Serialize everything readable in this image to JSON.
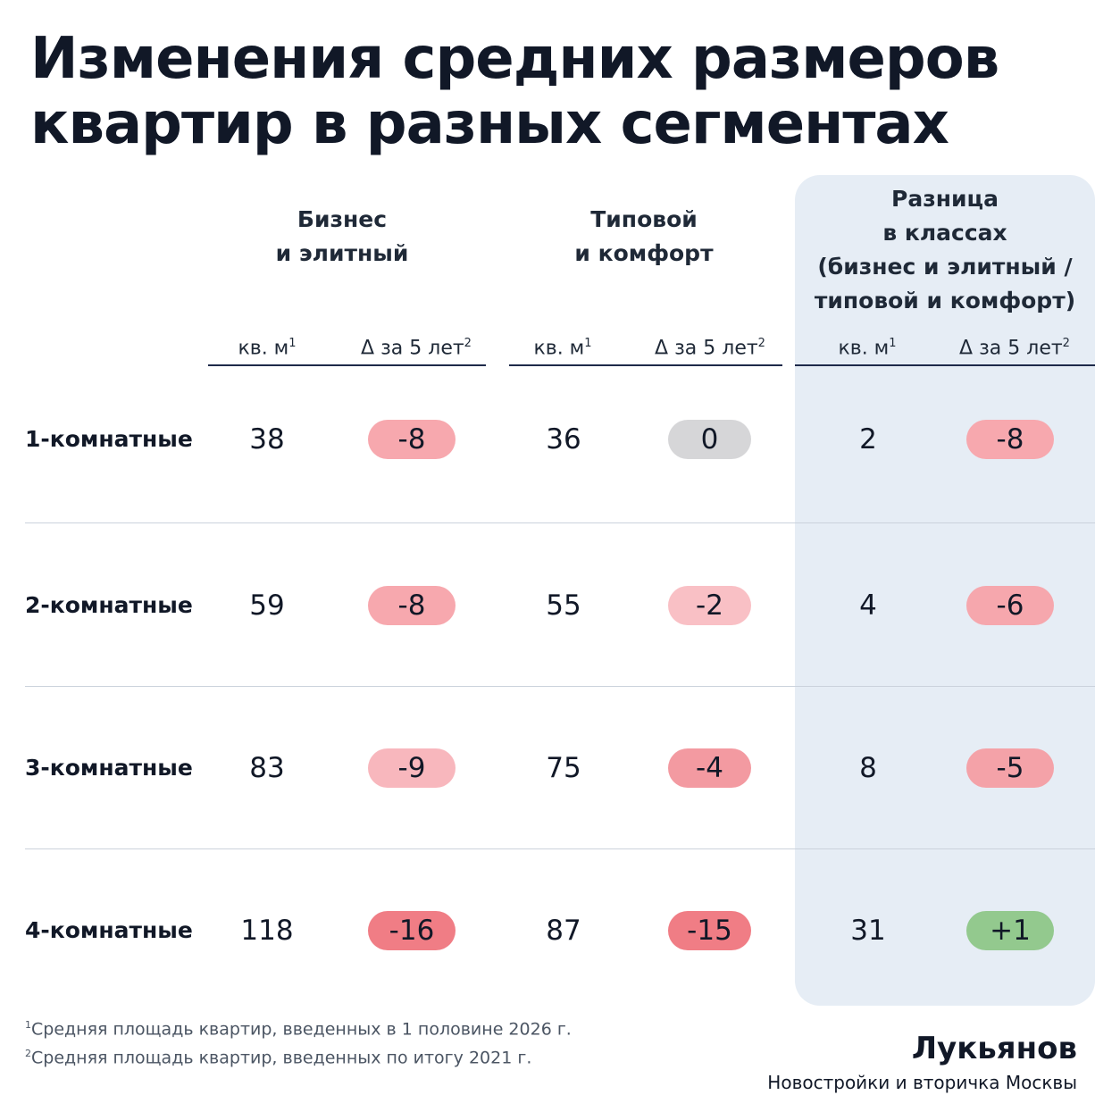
{
  "title": {
    "line1": "Изменения средних размеров",
    "line2": "квартир в разных сегментах"
  },
  "headers": {
    "business": {
      "line1": "Бизнес",
      "line2": "и элитный"
    },
    "typical": {
      "line1": "Типовой",
      "line2": "и комфорт"
    },
    "diff": {
      "line1": "Разница",
      "line2": "в классах",
      "line3": "(бизнес и элитный /",
      "line4": "типовой и комфорт)"
    },
    "sub_area": "кв. м",
    "sub_area_note": "1",
    "sub_delta": "Δ за 5 лет",
    "sub_delta_note": "2"
  },
  "chart_data": {
    "type": "table",
    "columns": [
      "Бизнес и элитный, кв. м",
      "Бизнес и элитный, Δ за 5 лет",
      "Типовой и комфорт, кв. м",
      "Типовой и комфорт, Δ за 5 лет",
      "Разница в классах, кв. м",
      "Разница в классах, Δ за 5 лет"
    ],
    "rows": [
      {
        "label": "1-комнатные",
        "business_area": "38",
        "business_delta": "-8",
        "typical_area": "36",
        "typical_delta": "0",
        "diff_area": "2",
        "diff_delta": "-8"
      },
      {
        "label": "2-комнатные",
        "business_area": "59",
        "business_delta": "-8",
        "typical_area": "55",
        "typical_delta": "-2",
        "diff_area": "4",
        "diff_delta": "-6"
      },
      {
        "label": "3-комнатные",
        "business_area": "83",
        "business_delta": "-9",
        "typical_area": "75",
        "typical_delta": "-4",
        "diff_area": "8",
        "diff_delta": "-5"
      },
      {
        "label": "4-комнатные",
        "business_area": "118",
        "business_delta": "-16",
        "typical_area": "87",
        "typical_delta": "-15",
        "diff_area": "31",
        "diff_delta": "+1"
      }
    ]
  },
  "footnotes": {
    "note1_mark": "1",
    "note1": "Средняя площадь квартир, введенных в 1 половине 2026 г.",
    "note2_mark": "2",
    "note2": "Средняя площадь квартир, введенных по итогу 2021 г."
  },
  "brand": {
    "name": "Лукьянов",
    "tagline": "Новостройки и вторичка Москвы"
  },
  "colors": {
    "negative": "#f7a8ae",
    "neutral": "#d6d6d8",
    "positive": "#93c98e",
    "panel": "#e6edf5"
  }
}
